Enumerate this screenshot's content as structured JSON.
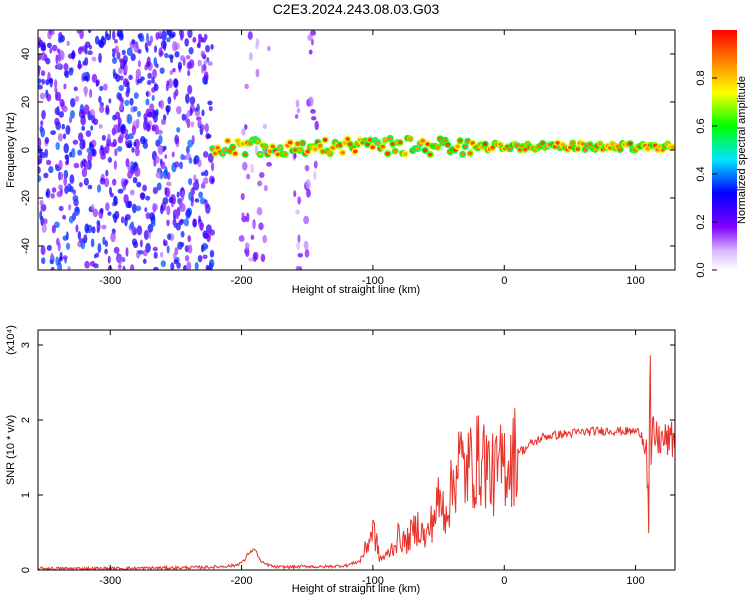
{
  "figure": {
    "title": "C2E3.2024.243.08.03.G03"
  },
  "chart_data": [
    {
      "type": "heatmap",
      "title": "C2E3.2024.243.08.03.G03",
      "xlabel": "Height of straight line (km)",
      "ylabel": "Frequency (Hz)",
      "xlim": [
        -355,
        130
      ],
      "ylim": [
        -50,
        50
      ],
      "x_ticks": [
        -300,
        -200,
        -100,
        0,
        100
      ],
      "y_ticks": [
        -40,
        -20,
        0,
        20,
        40
      ],
      "colorbar": {
        "label": "Normalized spectral amplitude",
        "range": [
          0,
          1
        ],
        "ticks": [
          0.0,
          0.2,
          0.4,
          0.6,
          0.8
        ],
        "colormap": [
          "#ffffff",
          "#7f00ff",
          "#0000ff",
          "#00ffff",
          "#00ff00",
          "#ffff00",
          "#ff7f00",
          "#ff0000"
        ]
      },
      "features": [
        {
          "name": "broadband noise",
          "x_range": [
            -355,
            -222
          ],
          "freq_range": [
            -50,
            50
          ],
          "amplitude": 0.3
        },
        {
          "name": "noise band",
          "x_range": [
            -200,
            -178
          ],
          "freq_range": [
            -50,
            50
          ],
          "amplitude": 0.15
        },
        {
          "name": "noise band",
          "x_range": [
            -160,
            -142
          ],
          "freq_range": [
            -50,
            50
          ],
          "amplitude": 0.15
        },
        {
          "name": "carrier line",
          "x_range": [
            -222,
            130
          ],
          "freq_range": [
            0,
            3
          ],
          "amplitude": 0.95
        }
      ]
    },
    {
      "type": "line",
      "xlabel": "Height of straight line (km)",
      "ylabel": "SNR (10 * v/v)",
      "scale_label": "(x10⁴)",
      "xlim": [
        -355,
        130
      ],
      "ylim": [
        0,
        3.2
      ],
      "x_ticks": [
        -300,
        -200,
        -100,
        0,
        100
      ],
      "y_ticks": [
        0,
        1,
        2,
        3
      ],
      "color": "#e8322a",
      "series": [
        {
          "x": [
            -355,
            -300,
            -250,
            -220,
            -205,
            -198,
            -195,
            -190,
            -185,
            -175,
            -160,
            -150,
            -140,
            -120,
            -110,
            -105,
            -100,
            -97,
            -95,
            -90,
            -85,
            -80,
            -75,
            -70,
            -65,
            -60,
            -55,
            -50,
            -45,
            -40,
            -35,
            -30,
            -25,
            -20,
            -15,
            -10,
            -5,
            0,
            5,
            10,
            15,
            20,
            25,
            30,
            40,
            50,
            60,
            70,
            80,
            90,
            100,
            105,
            108,
            110,
            111,
            112,
            113,
            115,
            120,
            125,
            130
          ],
          "y": [
            0.02,
            0.02,
            0.03,
            0.04,
            0.06,
            0.12,
            0.22,
            0.28,
            0.1,
            0.04,
            0.04,
            0.05,
            0.04,
            0.06,
            0.12,
            0.3,
            0.55,
            0.35,
            0.15,
            0.18,
            0.3,
            0.45,
            0.35,
            0.5,
            0.6,
            0.4,
            0.65,
            0.9,
            0.8,
            1.05,
            1.5,
            1.3,
            1.4,
            1.45,
            1.5,
            1.25,
            1.3,
            1.45,
            1.45,
            1.6,
            1.6,
            1.68,
            1.72,
            1.78,
            1.8,
            1.82,
            1.84,
            1.85,
            1.86,
            1.85,
            1.85,
            1.82,
            1.75,
            0.6,
            3.0,
            1.1,
            1.9,
            1.75,
            1.73,
            1.72,
            1.74
          ]
        }
      ]
    }
  ]
}
